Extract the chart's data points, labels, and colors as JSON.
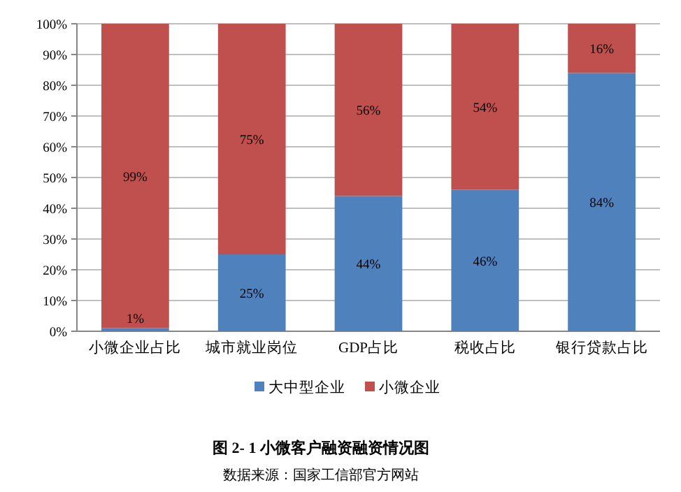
{
  "chart_data": {
    "type": "bar",
    "stacked": true,
    "title": "图 2- 1 小微客户融资融资情况图",
    "annotations": [
      "数据来源：国家工信部官方网站"
    ],
    "categories": [
      "小微企业占比",
      "城市就业岗位",
      "GDP占比",
      "税收占比",
      "银行贷款占比"
    ],
    "series": [
      {
        "name": "大中型企业",
        "color": "#4f81bd",
        "values": [
          1,
          25,
          44,
          46,
          84
        ],
        "value_labels": [
          "1%",
          "25%",
          "44%",
          "46%",
          "84%"
        ]
      },
      {
        "name": "小微企业",
        "color": "#c0504d",
        "values": [
          99,
          75,
          56,
          54,
          16
        ],
        "value_labels": [
          "99%",
          "75%",
          "56%",
          "54%",
          "16%"
        ]
      }
    ],
    "ylim": [
      0,
      100
    ],
    "yticks": [
      {
        "value": 0,
        "label": "0%"
      },
      {
        "value": 10,
        "label": "10%"
      },
      {
        "value": 20,
        "label": "20%"
      },
      {
        "value": 30,
        "label": "30%"
      },
      {
        "value": 40,
        "label": "40%"
      },
      {
        "value": 50,
        "label": "50%"
      },
      {
        "value": 60,
        "label": "60%"
      },
      {
        "value": 70,
        "label": "70%"
      },
      {
        "value": 80,
        "label": "80%"
      },
      {
        "value": 90,
        "label": "90%"
      },
      {
        "value": 100,
        "label": "100%"
      }
    ],
    "grid": "y",
    "legend": "bottom"
  }
}
